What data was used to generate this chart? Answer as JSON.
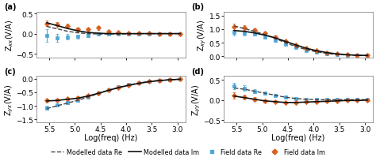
{
  "x_vals": [
    5.55,
    5.35,
    5.15,
    4.95,
    4.75,
    4.55,
    4.35,
    4.15,
    3.95,
    3.75,
    3.55,
    3.35,
    3.15,
    2.95
  ],
  "panel_a_label": "Z$_{xx}$(V/A)",
  "panel_a_ylim": [
    -0.6,
    0.55
  ],
  "panel_a_yticks": [
    -0.5,
    0.0,
    0.5
  ],
  "panel_a_model_re": [
    0.18,
    0.12,
    0.06,
    0.02,
    0.0,
    -0.01,
    -0.01,
    -0.01,
    -0.01,
    0.0,
    0.0,
    0.0,
    0.0,
    0.0
  ],
  "panel_a_model_im": [
    0.27,
    0.2,
    0.13,
    0.07,
    0.03,
    0.01,
    0.0,
    0.0,
    0.0,
    0.0,
    0.0,
    0.0,
    0.0,
    0.0
  ],
  "panel_a_field_re": [
    -0.05,
    -0.1,
    -0.08,
    -0.07,
    -0.05,
    0.0,
    0.0,
    0.0,
    0.0,
    0.0,
    0.0,
    0.0,
    0.0,
    0.0
  ],
  "panel_a_field_im": [
    0.25,
    0.22,
    0.18,
    0.1,
    0.1,
    0.14,
    0.06,
    0.03,
    0.02,
    0.01,
    0.01,
    0.0,
    0.0,
    0.0
  ],
  "panel_a_err_re": [
    0.15,
    0.1,
    0.07,
    0.05,
    0.04,
    0.04,
    0.03,
    0.02,
    0.015,
    0.01,
    0.01,
    0.01,
    0.01,
    0.01
  ],
  "panel_a_err_im": [
    0.07,
    0.07,
    0.06,
    0.05,
    0.04,
    0.05,
    0.03,
    0.02,
    0.015,
    0.01,
    0.01,
    0.01,
    0.01,
    0.01
  ],
  "panel_b_label": "Z$_{xy}$(V/A)",
  "panel_b_ylim": [
    -0.05,
    1.65
  ],
  "panel_b_yticks": [
    0.0,
    0.5,
    1.0,
    1.5
  ],
  "panel_b_model_re": [
    1.12,
    1.02,
    0.92,
    0.8,
    0.66,
    0.5,
    0.36,
    0.25,
    0.17,
    0.11,
    0.07,
    0.05,
    0.04,
    0.03
  ],
  "panel_b_model_im": [
    0.95,
    0.92,
    0.86,
    0.78,
    0.68,
    0.55,
    0.42,
    0.3,
    0.21,
    0.14,
    0.09,
    0.06,
    0.04,
    0.03
  ],
  "panel_b_field_re": [
    0.88,
    0.85,
    0.82,
    0.72,
    0.58,
    0.44,
    0.32,
    0.22,
    0.15,
    0.1,
    0.07,
    0.05,
    0.04,
    0.03
  ],
  "panel_b_field_im": [
    1.08,
    1.05,
    0.98,
    0.85,
    0.72,
    0.56,
    0.42,
    0.3,
    0.21,
    0.14,
    0.1,
    0.06,
    0.04,
    0.03
  ],
  "panel_b_err_re": [
    0.1,
    0.07,
    0.05,
    0.04,
    0.04,
    0.03,
    0.025,
    0.02,
    0.015,
    0.01,
    0.01,
    0.01,
    0.01,
    0.01
  ],
  "panel_b_err_im": [
    0.12,
    0.08,
    0.06,
    0.05,
    0.04,
    0.035,
    0.025,
    0.02,
    0.015,
    0.01,
    0.01,
    0.01,
    0.01,
    0.01
  ],
  "panel_c_label": "Z$_{yx}$(V/A)",
  "panel_c_ylim": [
    -1.6,
    0.1
  ],
  "panel_c_yticks": [
    -1.5,
    -1.0,
    -0.5,
    0.0
  ],
  "panel_c_model_re": [
    -1.1,
    -1.0,
    -0.9,
    -0.8,
    -0.68,
    -0.55,
    -0.43,
    -0.32,
    -0.23,
    -0.16,
    -0.1,
    -0.06,
    -0.04,
    -0.02
  ],
  "panel_c_model_im": [
    -0.82,
    -0.8,
    -0.76,
    -0.72,
    -0.64,
    -0.54,
    -0.43,
    -0.33,
    -0.24,
    -0.17,
    -0.11,
    -0.07,
    -0.04,
    -0.02
  ],
  "panel_c_field_re": [
    -1.08,
    -0.98,
    -0.88,
    -0.78,
    -0.67,
    -0.54,
    -0.42,
    -0.31,
    -0.22,
    -0.15,
    -0.1,
    -0.06,
    -0.04,
    -0.02
  ],
  "panel_c_field_im": [
    -0.8,
    -0.78,
    -0.74,
    -0.7,
    -0.63,
    -0.53,
    -0.42,
    -0.32,
    -0.23,
    -0.16,
    -0.11,
    -0.07,
    -0.04,
    -0.02
  ],
  "panel_c_err_re": [
    0.07,
    0.055,
    0.045,
    0.04,
    0.035,
    0.03,
    0.025,
    0.02,
    0.015,
    0.012,
    0.01,
    0.01,
    0.01,
    0.01
  ],
  "panel_c_err_im": [
    0.07,
    0.055,
    0.045,
    0.04,
    0.035,
    0.03,
    0.025,
    0.02,
    0.015,
    0.012,
    0.01,
    0.01,
    0.01,
    0.01
  ],
  "panel_d_label": "Z$_{yy}$(V/A)",
  "panel_d_ylim": [
    -0.55,
    0.6
  ],
  "panel_d_yticks": [
    -0.5,
    0.0,
    0.5
  ],
  "panel_d_model_re": [
    0.3,
    0.27,
    0.22,
    0.17,
    0.12,
    0.07,
    0.04,
    0.02,
    0.01,
    0.01,
    0.01,
    0.01,
    0.01,
    0.01
  ],
  "panel_d_model_im": [
    0.1,
    0.06,
    0.02,
    -0.02,
    -0.04,
    -0.06,
    -0.06,
    -0.05,
    -0.04,
    -0.03,
    -0.02,
    -0.01,
    -0.01,
    0.0
  ],
  "panel_d_field_re": [
    0.35,
    0.3,
    0.22,
    0.17,
    0.12,
    0.08,
    0.04,
    0.02,
    0.01,
    0.01,
    0.01,
    0.01,
    0.01,
    0.01
  ],
  "panel_d_field_im": [
    0.12,
    0.07,
    0.02,
    -0.02,
    -0.04,
    -0.06,
    -0.06,
    -0.05,
    -0.04,
    -0.03,
    -0.02,
    -0.01,
    -0.01,
    0.0
  ],
  "panel_d_err_re": [
    0.08,
    0.06,
    0.05,
    0.04,
    0.03,
    0.025,
    0.02,
    0.015,
    0.01,
    0.01,
    0.01,
    0.01,
    0.01,
    0.01
  ],
  "panel_d_err_im": [
    0.08,
    0.06,
    0.05,
    0.04,
    0.03,
    0.025,
    0.02,
    0.015,
    0.01,
    0.01,
    0.01,
    0.01,
    0.01,
    0.01
  ],
  "color_model_re": "#444444",
  "color_model_im": "#111111",
  "color_field_re": "#4da6d8",
  "color_field_im": "#d96020",
  "xlabel": "Log(freq) (Hz)",
  "xlim": [
    2.85,
    5.75
  ],
  "xticks": [
    3.0,
    3.5,
    4.0,
    4.5,
    5.0,
    5.5
  ],
  "legend_items": [
    "Modelled data Re",
    "Modelled data Im",
    "Field data Re",
    "Field data Im"
  ],
  "bg_color": "#ffffff",
  "fontsize": 7,
  "label_fontsize": 6.5
}
